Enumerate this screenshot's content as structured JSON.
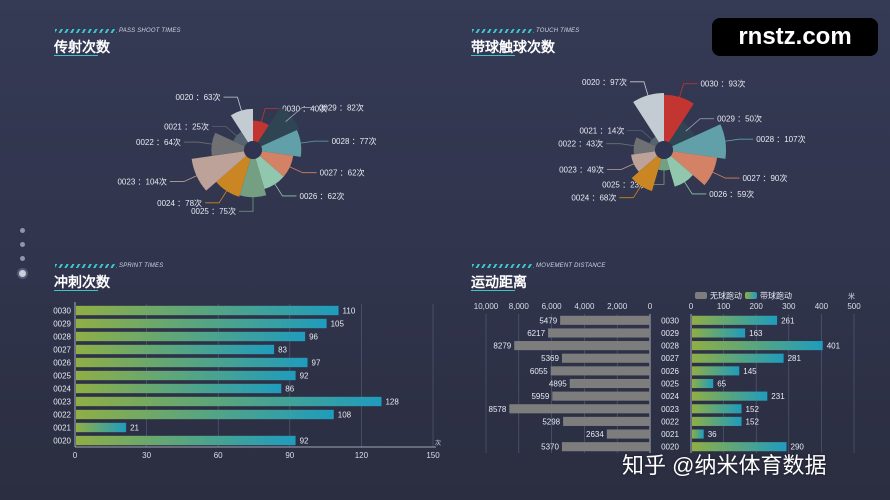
{
  "watermark": "rnstz.com",
  "footer_watermark": "知乎 @纳米体育数据",
  "chart_data": [
    {
      "type": "pie",
      "variant": "rose",
      "title": "传射次数",
      "subtitle": "PASS SHOOT TIMES",
      "categories": [
        "0030",
        "0029",
        "0028",
        "0027",
        "0026",
        "0025",
        "0024",
        "0023",
        "0022",
        "0021",
        "0020"
      ],
      "values": [
        40,
        82,
        77,
        62,
        62,
        75,
        78,
        104,
        64,
        25,
        63
      ],
      "labels": [
        "0030 ：40次",
        "0029 ：82次",
        "0028 ：77次",
        "0027 ：62次",
        "0026 ：62次",
        "0025 ：75次",
        "0024 ：78次",
        "0023 ：104次",
        "0022 ：64次",
        "0021 ：25次",
        "0020 ：63次"
      ],
      "colors": [
        "#c23531",
        "#2f4554",
        "#61a0a8",
        "#d48265",
        "#91c7ae",
        "#749f83",
        "#ca8622",
        "#bda29a",
        "#6e7074",
        "#546570",
        "#c4ccd3"
      ]
    },
    {
      "type": "pie",
      "variant": "rose",
      "title": "带球触球次数",
      "subtitle": "TOUCH TIMES",
      "categories": [
        "0030",
        "0029",
        "0028",
        "0027",
        "0026",
        "0025",
        "0024",
        "0023",
        "0022",
        "0021",
        "0020"
      ],
      "values": [
        93,
        50,
        107,
        90,
        59,
        23,
        68,
        49,
        43,
        14,
        97
      ],
      "labels": [
        "0030 ：93次",
        "0029 ：50次",
        "0028 ：107次",
        "0027 ：90次",
        "0026 ：59次",
        "0025 ：23次",
        "0024 ：68次",
        "0023 ：49次",
        "0022 ：43次",
        "0021 ：14次",
        "0020 ：97次"
      ],
      "colors": [
        "#c23531",
        "#2f4554",
        "#61a0a8",
        "#d48265",
        "#91c7ae",
        "#749f83",
        "#ca8622",
        "#bda29a",
        "#6e7074",
        "#546570",
        "#c4ccd3"
      ]
    },
    {
      "type": "bar",
      "orientation": "horizontal",
      "title": "冲刺次数",
      "subtitle": "SPRINT TIMES",
      "categories": [
        "0030",
        "0029",
        "0028",
        "0027",
        "0026",
        "0025",
        "0024",
        "0023",
        "0022",
        "0021",
        "0020"
      ],
      "values": [
        110,
        105,
        96,
        83,
        97,
        92,
        86,
        128,
        108,
        21,
        92
      ],
      "xticks": [
        "0",
        "30",
        "60",
        "90",
        "120",
        "150"
      ],
      "xlim": [
        0,
        150
      ],
      "unit": "次",
      "colors": [
        "#8fae45",
        "#1f9cbd"
      ]
    },
    {
      "type": "bar",
      "orientation": "horizontal",
      "title": "运动距离",
      "subtitle": "MOVEMENT DISTANCE",
      "categories": [
        "0030",
        "0029",
        "0028",
        "0027",
        "0026",
        "0025",
        "0024",
        "0023",
        "0022",
        "0021",
        "0020"
      ],
      "legend": [
        "无球跑动",
        "带球跑动"
      ],
      "unit": "米",
      "series": [
        {
          "name": "无球跑动",
          "values": [
            5479,
            6217,
            8279,
            5369,
            6055,
            4895,
            5959,
            8578,
            5298,
            2634,
            5370
          ],
          "xlim": [
            10000,
            0
          ],
          "xticks": [
            "10,000",
            "8,000",
            "6,000",
            "4,000",
            "2,000",
            "0"
          ],
          "color": "#7d7d7d"
        },
        {
          "name": "带球跑动",
          "values": [
            261,
            163,
            401,
            281,
            145,
            65,
            231,
            152,
            152,
            36,
            290
          ],
          "xlim": [
            0,
            500
          ],
          "xticks": [
            "0",
            "100",
            "200",
            "300",
            "400",
            "500"
          ],
          "colors": [
            "#8fae45",
            "#1f9cbd"
          ]
        }
      ]
    }
  ]
}
